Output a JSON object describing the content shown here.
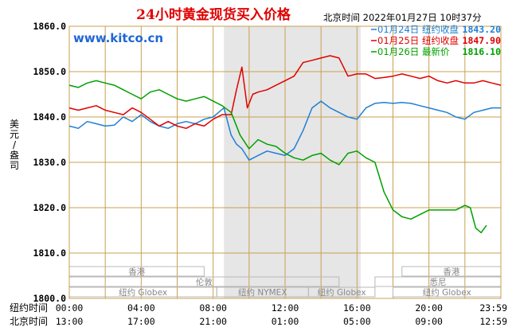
{
  "chart_data": {
    "type": "line",
    "title": "24小时黄金现货买入价格",
    "timestamp": "北京时间  2022年01月27日 10时37分",
    "watermark": "www.kitco.cn",
    "ylabel": "美元/盎司",
    "ylim": [
      1800,
      1860
    ],
    "yticks": [
      "1860.0",
      "1850.0",
      "1840.0",
      "1830.0",
      "1820.0",
      "1810.0",
      "1800.0"
    ],
    "xlim": [
      0,
      24
    ],
    "xticks_ny": [
      "00:00",
      "04:00",
      "08:00",
      "12:00",
      "16:00",
      "20:00",
      "23:59"
    ],
    "xticks_bj": [
      "13:00",
      "17:00",
      "21:00",
      "01:00",
      "05:00",
      "09:00",
      "12:59"
    ],
    "row_label_ny": "纽约时间",
    "row_label_bj": "北京时间",
    "nymex_window": [
      8.6,
      16.2
    ],
    "grid": true,
    "legend_position": "top-right",
    "markets": [
      {
        "label": "香港",
        "start": 0.0,
        "end": 7.5,
        "row": 0
      },
      {
        "label": "伦敦",
        "start": 0.0,
        "end": 15.0,
        "row": 1
      },
      {
        "label": "纽约 Globex",
        "start": 0.0,
        "end": 8.2,
        "row": 2
      },
      {
        "label": "纽约 NYMEX",
        "start": 8.2,
        "end": 13.3,
        "row": 2
      },
      {
        "label": "纽约 Globex",
        "start": 13.3,
        "end": 17.0,
        "row": 2
      },
      {
        "label": "香港",
        "start": 18.5,
        "end": 24.0,
        "row": 0
      },
      {
        "label": "悉尼",
        "start": 17.0,
        "end": 24.0,
        "row": 1
      },
      {
        "label": "纽约 Globex",
        "start": 18.0,
        "end": 24.0,
        "row": 2
      }
    ],
    "series": [
      {
        "name": "01月24日",
        "legend_label": "纽约收盘",
        "legend_value": "1843.20",
        "color": "#1f7fd6",
        "x": [
          0,
          0.5,
          1,
          1.5,
          2,
          2.5,
          3,
          3.5,
          4,
          4.5,
          5,
          5.5,
          6,
          6.5,
          7,
          7.5,
          8,
          8.3,
          8.6,
          9,
          9.3,
          9.6,
          10,
          10.5,
          11,
          11.5,
          12,
          12.5,
          13,
          13.5,
          14,
          14.5,
          15,
          15.5,
          16,
          16.5,
          17,
          17.5,
          18,
          18.5,
          19,
          19.5,
          20,
          20.5,
          21,
          21.5,
          22,
          22.5,
          23,
          23.5,
          24
        ],
        "y": [
          1838,
          1837.5,
          1839,
          1838.5,
          1838,
          1838.2,
          1840,
          1839,
          1840.5,
          1839,
          1838,
          1837.5,
          1838.5,
          1839,
          1838.5,
          1839.5,
          1840,
          1841,
          1842,
          1836,
          1834,
          1833,
          1830.5,
          1831.5,
          1832.5,
          1832,
          1831.5,
          1833,
          1837,
          1842,
          1843.5,
          1842,
          1841,
          1840,
          1839.5,
          1842,
          1843,
          1843.2,
          1843,
          1843.2,
          1843,
          1842.5,
          1842,
          1841.5,
          1841,
          1840,
          1839.5,
          1841,
          1841.5,
          1842,
          1842
        ]
      },
      {
        "name": "01月25日",
        "legend_label": "纽约收盘",
        "legend_value": "1847.90",
        "color": "#e00000",
        "x": [
          0,
          0.5,
          1,
          1.5,
          2,
          2.5,
          3,
          3.5,
          4,
          4.5,
          5,
          5.5,
          6,
          6.5,
          7,
          7.5,
          8,
          8.5,
          9,
          9.3,
          9.6,
          9.9,
          10.2,
          10.5,
          11,
          11.5,
          12,
          12.5,
          13,
          13.5,
          14,
          14.5,
          15,
          15.5,
          16,
          16.5,
          17,
          17.5,
          18,
          18.5,
          19,
          19.5,
          20,
          20.5,
          21,
          21.5,
          22,
          22.5,
          23,
          23.5,
          24
        ],
        "y": [
          1842,
          1841.5,
          1842,
          1842.5,
          1841.5,
          1841,
          1840.5,
          1842,
          1841,
          1839.5,
          1838,
          1839,
          1838,
          1837.5,
          1838.5,
          1838,
          1839.5,
          1840.5,
          1840.5,
          1846,
          1851,
          1842,
          1845,
          1845.5,
          1846,
          1847,
          1848,
          1849,
          1852,
          1852.5,
          1853,
          1853.5,
          1853,
          1849,
          1849.5,
          1849.5,
          1848.5,
          1848.7,
          1849,
          1849.5,
          1849,
          1848.5,
          1849,
          1848,
          1847.5,
          1848,
          1847.5,
          1847.5,
          1848,
          1847.5,
          1847
        ]
      },
      {
        "name": "01月26日",
        "legend_label": "最新价",
        "legend_value": "1816.10",
        "color": "#00a000",
        "x": [
          0,
          0.5,
          1,
          1.5,
          2,
          2.5,
          3,
          3.5,
          4,
          4.5,
          5,
          5.5,
          6,
          6.5,
          7,
          7.5,
          8,
          8.5,
          9,
          9.5,
          10,
          10.5,
          11,
          11.5,
          12,
          12.5,
          13,
          13.5,
          14,
          14.5,
          15,
          15.5,
          16,
          16.5,
          17,
          17.5,
          18,
          18.5,
          19,
          19.5,
          20,
          20.5,
          21,
          21.5,
          22,
          22.3,
          22.6,
          22.9,
          23.2
        ],
        "y": [
          1847,
          1846.5,
          1847.5,
          1848,
          1847.5,
          1847,
          1846,
          1845,
          1844,
          1845.5,
          1846,
          1845,
          1844,
          1843.5,
          1844,
          1844.5,
          1843.5,
          1842.5,
          1841,
          1836,
          1833,
          1835,
          1834,
          1833.5,
          1832,
          1831,
          1830.5,
          1831.5,
          1832,
          1830.5,
          1829.5,
          1832,
          1832.5,
          1831,
          1830,
          1823.5,
          1819.5,
          1818,
          1817.5,
          1818.5,
          1819.5,
          1819.5,
          1819.5,
          1819.5,
          1820.5,
          1820,
          1815.5,
          1814.5,
          1816.1
        ]
      }
    ]
  }
}
